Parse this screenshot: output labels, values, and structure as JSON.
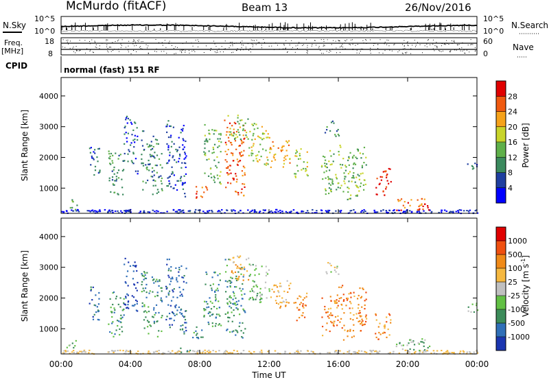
{
  "header": {
    "station": "McMurdo (fitACF)",
    "beam": "Beam 13",
    "date": "26/Nov/2016"
  },
  "aux": {
    "nsky_label": "N.Sky",
    "nsearch_label": "N.Search",
    "ticks_left_top": "10^5",
    "ticks_left_bottom": "10^0",
    "ticks_right_top": "10^5",
    "ticks_right_bottom": "10^0",
    "freq_label_line1": "Freq.",
    "freq_label_line2": "[MHz]",
    "freq_ticks": [
      "18",
      "8"
    ],
    "nave_label": "Nave",
    "nave_ticks": [
      "60",
      "0"
    ],
    "cpid_label": "CPID",
    "cpid_value": "normal (fast) 151 RF"
  },
  "chart_data": [
    {
      "type": "heatmap",
      "name": "power",
      "ylabel": "Slant Range [km]",
      "yticks": [
        "4000",
        "3000",
        "2000",
        "1000"
      ],
      "ylim": [
        180,
        4600
      ],
      "xlim": [
        0,
        24
      ],
      "colorbar": {
        "label": "Power [dB]",
        "ticks": [
          "28",
          "24",
          "20",
          "16",
          "12",
          "8",
          "4"
        ],
        "colors": [
          "#0000ff",
          "#1f3fa0",
          "#3b8a5e",
          "#5fb04a",
          "#c8d42a",
          "#f6a21a",
          "#f05a10",
          "#e00000"
        ]
      }
    },
    {
      "type": "heatmap",
      "name": "velocity",
      "ylabel": "Slant Range [km]",
      "yticks": [
        "4000",
        "3000",
        "2000",
        "1000"
      ],
      "ylim": [
        180,
        4600
      ],
      "xlim": [
        0,
        24
      ],
      "xlabel": "Time UT",
      "xticks": [
        "00:00",
        "04:00",
        "08:00",
        "12:00",
        "16:00",
        "20:00",
        "00:00"
      ],
      "colorbar": {
        "label": "Velocity [m s",
        "label_sup": "-1",
        "label_end": "]",
        "ticks": [
          "1000",
          "500",
          "100",
          "25",
          "-25",
          "-100",
          "-500",
          "-1000"
        ],
        "colors": [
          "#1a35b0",
          "#2f6fb8",
          "#3c8c5a",
          "#62c044",
          "#c0c0c0",
          "#f5b840",
          "#f08a18",
          "#f05010",
          "#e00000"
        ]
      }
    }
  ]
}
